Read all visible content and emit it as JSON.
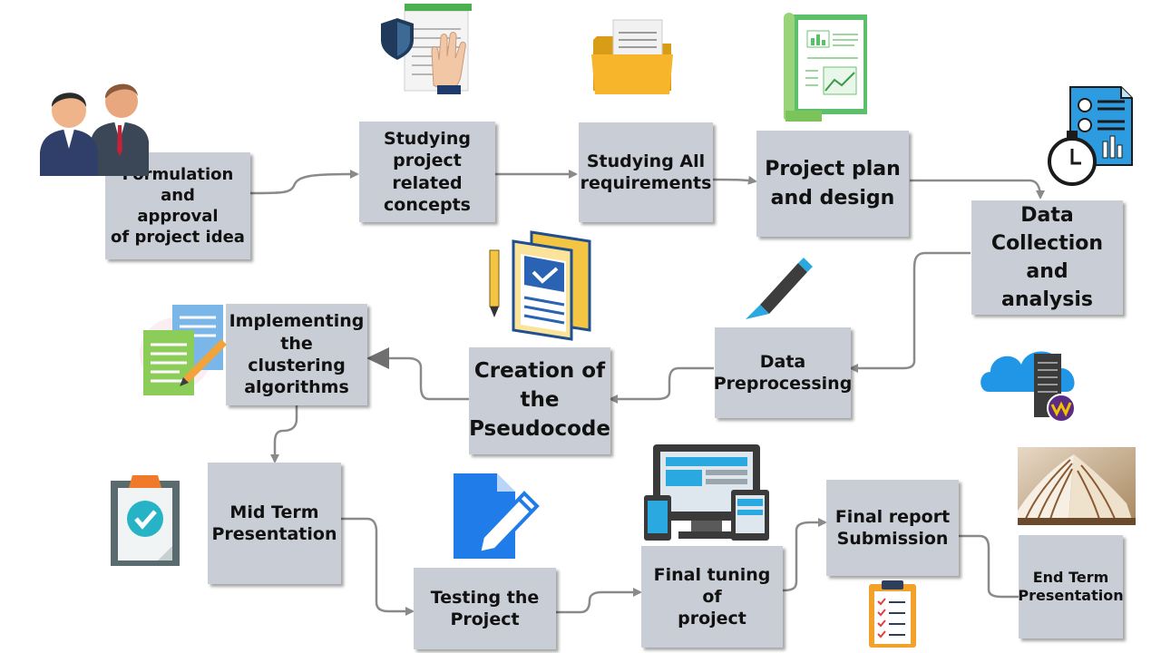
{
  "steps": [
    {
      "id": "s1",
      "label": "Formulation and\napproval\nof project idea"
    },
    {
      "id": "s2",
      "label": "Studying\nproject related\nconcepts"
    },
    {
      "id": "s3",
      "label": "Studying All\nrequirements"
    },
    {
      "id": "s4",
      "label": "Project plan\nand design"
    },
    {
      "id": "s5",
      "label": "Data\nCollection and\nanalysis"
    },
    {
      "id": "s6",
      "label": "Data\nPreprocessing"
    },
    {
      "id": "s7",
      "label": "Creation of\nthe\nPseudocode"
    },
    {
      "id": "s8",
      "label": "Implementing\nthe clustering\nalgorithms"
    },
    {
      "id": "s9",
      "label": "Mid Term\nPresentation"
    },
    {
      "id": "s10",
      "label": "Testing the\nProject"
    },
    {
      "id": "s11",
      "label": "Final tuning of\nproject"
    },
    {
      "id": "s12",
      "label": "Final report\nSubmission"
    },
    {
      "id": "s13",
      "label": "End Term\nPresentation"
    }
  ],
  "edges": [
    [
      "s1",
      "s2"
    ],
    [
      "s2",
      "s3"
    ],
    [
      "s3",
      "s4"
    ],
    [
      "s4",
      "s5"
    ],
    [
      "s5",
      "s6"
    ],
    [
      "s6",
      "s7"
    ],
    [
      "s7",
      "s8"
    ],
    [
      "s8",
      "s9"
    ],
    [
      "s9",
      "s10"
    ],
    [
      "s10",
      "s11"
    ],
    [
      "s11",
      "s12"
    ],
    [
      "s12",
      "s13"
    ]
  ],
  "icons": [
    "business-people-icon",
    "security-document-icon",
    "folder-icon",
    "plan-scroll-icon",
    "stopwatch-report-icon",
    "pencil-icon",
    "books-icon",
    "cloud-server-icon",
    "notes-pen-icon",
    "clipboard-check-icon",
    "edit-document-icon",
    "devices-icon",
    "open-book-icon",
    "checklist-icon"
  ],
  "colors": {
    "box": "#c9ced6",
    "arrow": "#8a8a8a",
    "text": "#111111"
  }
}
